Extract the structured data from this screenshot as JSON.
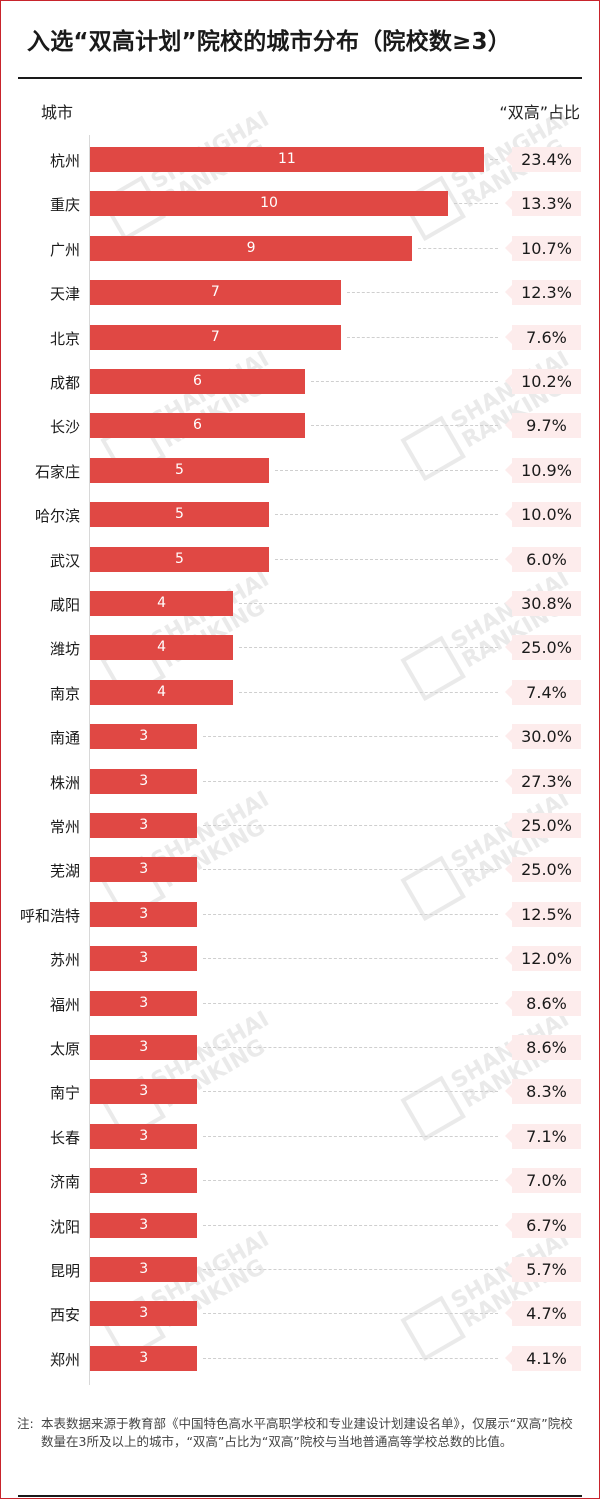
{
  "title": "入选“双高计划”院校的城市分布（院校数≥3）",
  "header": {
    "city_label": "城市",
    "share_label": "“双高”占比"
  },
  "note": {
    "label": "注:",
    "text": "本表数据来源于教育部《中国特色高水平高职学校和专业建设计划建设名单》，仅展示“双高”院校数量在3所及以上的城市，“双高”占比为“双高”院校与当地普通高等学校总数的比值。"
  },
  "watermark": {
    "line1": "SHANGHAI",
    "line2": "RANKING"
  },
  "colors": {
    "bar": "#e04844",
    "badge_bg": "#fdecec",
    "frame": "#c8242c"
  },
  "chart_data": {
    "type": "bar",
    "orientation": "horizontal",
    "title": "入选“双高计划”院校的城市分布（院校数≥3）",
    "xlabel": "",
    "ylabel": "城市",
    "categories": [
      "杭州",
      "重庆",
      "广州",
      "天津",
      "北京",
      "成都",
      "长沙",
      "石家庄",
      "哈尔滨",
      "武汉",
      "咸阳",
      "潍坊",
      "南京",
      "南通",
      "株洲",
      "常州",
      "芜湖",
      "呼和浩特",
      "苏州",
      "福州",
      "太原",
      "南宁",
      "长春",
      "济南",
      "沈阳",
      "昆明",
      "西安",
      "郑州"
    ],
    "series": [
      {
        "name": "“双高”院校数",
        "values": [
          11,
          10,
          9,
          7,
          7,
          6,
          6,
          5,
          5,
          5,
          4,
          4,
          4,
          3,
          3,
          3,
          3,
          3,
          3,
          3,
          3,
          3,
          3,
          3,
          3,
          3,
          3,
          3
        ]
      },
      {
        "name": "“双高”占比",
        "values": [
          "23.4%",
          "13.3%",
          "10.7%",
          "12.3%",
          "7.6%",
          "10.2%",
          "9.7%",
          "10.9%",
          "10.0%",
          "6.0%",
          "30.8%",
          "25.0%",
          "7.4%",
          "30.0%",
          "27.3%",
          "25.0%",
          "25.0%",
          "12.5%",
          "12.0%",
          "8.6%",
          "8.6%",
          "8.3%",
          "7.1%",
          "7.0%",
          "6.7%",
          "5.7%",
          "4.7%",
          "4.1%"
        ]
      }
    ],
    "grid": false,
    "legend": "none"
  }
}
